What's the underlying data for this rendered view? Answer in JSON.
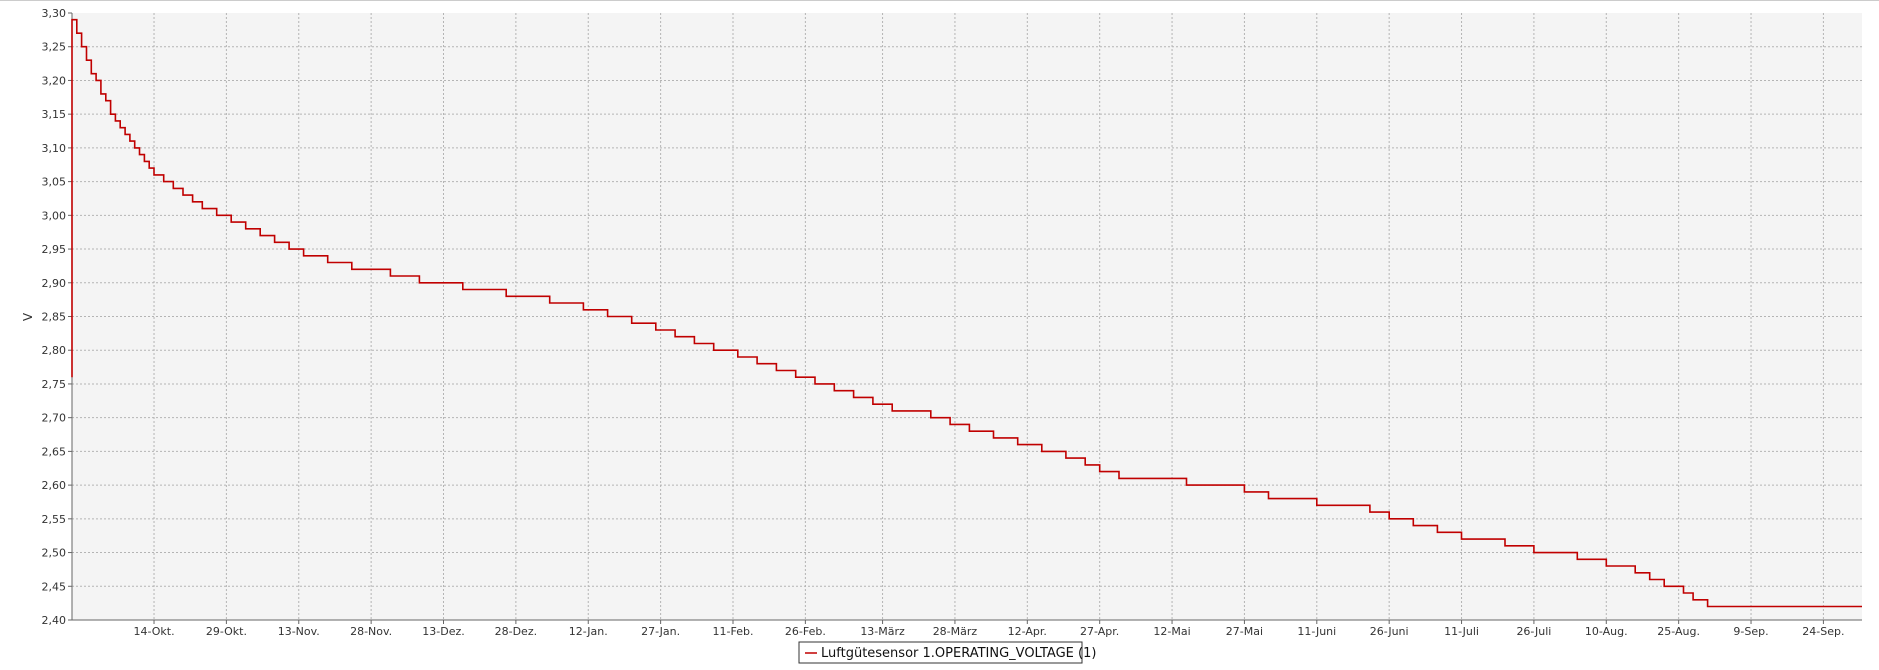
{
  "chart_data": {
    "type": "line",
    "title": "",
    "xlabel": "",
    "ylabel": "V",
    "ylim": [
      2.4,
      3.3
    ],
    "xlim": [
      "2023-09-27",
      "2024-10-02"
    ],
    "grid": true,
    "legend_position": "bottom-center",
    "colors": {
      "series": "#c00000",
      "plot_bg": "#f4f4f4",
      "grid": "#b4b4b4"
    },
    "y_ticks": [
      "2,40",
      "2,45",
      "2,50",
      "2,55",
      "2,60",
      "2,65",
      "2,70",
      "2,75",
      "2,80",
      "2,85",
      "2,90",
      "2,95",
      "3,00",
      "3,05",
      "3,10",
      "3,15",
      "3,20",
      "3,25",
      "3,30"
    ],
    "x_ticks": [
      {
        "date": "2023-10-14",
        "label": "14-Okt."
      },
      {
        "date": "2023-10-29",
        "label": "29-Okt."
      },
      {
        "date": "2023-11-13",
        "label": "13-Nov."
      },
      {
        "date": "2023-11-28",
        "label": "28-Nov."
      },
      {
        "date": "2023-12-13",
        "label": "13-Dez."
      },
      {
        "date": "2023-12-28",
        "label": "28-Dez."
      },
      {
        "date": "2024-01-12",
        "label": "12-Jan."
      },
      {
        "date": "2024-01-27",
        "label": "27-Jan."
      },
      {
        "date": "2024-02-11",
        "label": "11-Feb."
      },
      {
        "date": "2024-02-26",
        "label": "26-Feb."
      },
      {
        "date": "2024-03-13",
        "label": "13-März"
      },
      {
        "date": "2024-03-28",
        "label": "28-März"
      },
      {
        "date": "2024-04-12",
        "label": "12-Apr."
      },
      {
        "date": "2024-04-27",
        "label": "27-Apr."
      },
      {
        "date": "2024-05-12",
        "label": "12-Mai"
      },
      {
        "date": "2024-05-27",
        "label": "27-Mai"
      },
      {
        "date": "2024-06-11",
        "label": "11-Juni"
      },
      {
        "date": "2024-06-26",
        "label": "26-Juni"
      },
      {
        "date": "2024-07-11",
        "label": "11-Juli"
      },
      {
        "date": "2024-07-26",
        "label": "26-Juli"
      },
      {
        "date": "2024-08-10",
        "label": "10-Aug."
      },
      {
        "date": "2024-08-25",
        "label": "25-Aug."
      },
      {
        "date": "2024-09-09",
        "label": "9-Sep."
      },
      {
        "date": "2024-09-24",
        "label": "24-Sep."
      }
    ],
    "series": [
      {
        "name": "Luftgütesensor 1.OPERATING_VOLTAGE (1)",
        "x": [
          "2023-09-27",
          "2023-09-27",
          "2023-09-27",
          "2023-09-28",
          "2023-09-29",
          "2023-09-30",
          "2023-10-01",
          "2023-10-02",
          "2023-10-03",
          "2023-10-04",
          "2023-10-05",
          "2023-10-06",
          "2023-10-07",
          "2023-10-08",
          "2023-10-09",
          "2023-10-10",
          "2023-10-11",
          "2023-10-12",
          "2023-10-13",
          "2023-10-14",
          "2023-10-16",
          "2023-10-18",
          "2023-10-20",
          "2023-10-22",
          "2023-10-24",
          "2023-10-27",
          "2023-10-30",
          "2023-11-02",
          "2023-11-05",
          "2023-11-08",
          "2023-11-11",
          "2023-11-14",
          "2023-11-19",
          "2023-11-24",
          "2023-12-02",
          "2023-12-08",
          "2023-12-17",
          "2023-12-26",
          "2024-01-04",
          "2024-01-11",
          "2024-01-16",
          "2024-01-21",
          "2024-01-26",
          "2024-01-30",
          "2024-02-03",
          "2024-02-07",
          "2024-02-12",
          "2024-02-16",
          "2024-02-20",
          "2024-02-24",
          "2024-02-28",
          "2024-03-03",
          "2024-03-07",
          "2024-03-11",
          "2024-03-15",
          "2024-03-19",
          "2024-03-23",
          "2024-03-27",
          "2024-03-31",
          "2024-04-05",
          "2024-04-10",
          "2024-04-15",
          "2024-04-20",
          "2024-04-24",
          "2024-04-27",
          "2024-05-01",
          "2024-05-15",
          "2024-05-27",
          "2024-06-01",
          "2024-06-11",
          "2024-06-22",
          "2024-06-26",
          "2024-07-01",
          "2024-07-06",
          "2024-07-11",
          "2024-07-20",
          "2024-07-26",
          "2024-08-04",
          "2024-08-10",
          "2024-08-16",
          "2024-08-19",
          "2024-08-22",
          "2024-08-26",
          "2024-08-28",
          "2024-08-31",
          "2024-09-03",
          "2024-09-06",
          "2024-09-09",
          "2024-09-11",
          "2024-09-13",
          "2024-09-15",
          "2024-09-17",
          "2024-09-19",
          "2024-09-21",
          "2024-09-23",
          "2024-09-25",
          "2024-09-27",
          "2024-09-29",
          "2024-10-01",
          "2024-10-02"
        ],
        "y": [
          2.76,
          2.8,
          3.29,
          3.27,
          3.25,
          3.23,
          3.21,
          3.2,
          3.18,
          3.17,
          3.15,
          3.14,
          3.13,
          3.12,
          3.11,
          3.1,
          3.09,
          3.08,
          3.07,
          3.06,
          3.05,
          3.04,
          3.03,
          3.02,
          3.01,
          3.0,
          2.99,
          2.98,
          2.97,
          2.96,
          2.95,
          2.94,
          2.93,
          2.92,
          2.91,
          2.9,
          2.89,
          2.88,
          2.87,
          2.86,
          2.85,
          2.84,
          2.83,
          2.82,
          2.81,
          2.8,
          2.79,
          2.78,
          2.77,
          2.76,
          2.75,
          2.74,
          2.73,
          2.72,
          2.71,
          2.71,
          2.7,
          2.69,
          2.68,
          2.67,
          2.66,
          2.65,
          2.64,
          2.63,
          2.62,
          2.61,
          2.6,
          2.59,
          2.58,
          2.57,
          2.56,
          2.55,
          2.54,
          2.53,
          2.52,
          2.51,
          2.5,
          2.49,
          2.48,
          2.47,
          2.46,
          2.45,
          2.44,
          2.43,
          2.42,
          2.42,
          2.42,
          2.42,
          2.42,
          2.42,
          2.42,
          2.42,
          2.42,
          2.42,
          2.42,
          2.42,
          2.42,
          2.42,
          2.42,
          2.42
        ],
        "note_overridden_by_trace": true
      }
    ]
  }
}
